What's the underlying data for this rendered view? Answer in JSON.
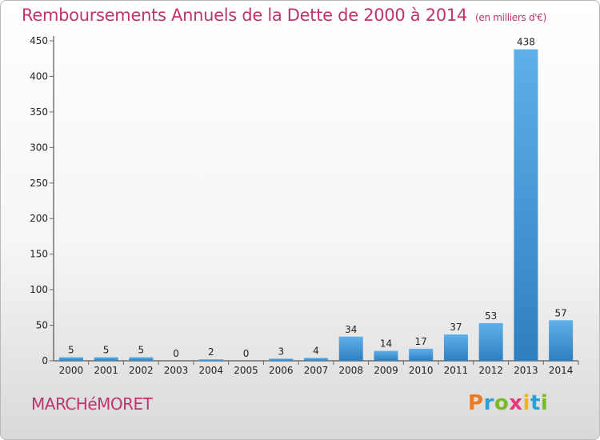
{
  "header": {
    "title": "Remboursements Annuels de la Dette de 2000 à 2014",
    "unit_note": "(en milliers d'€)"
  },
  "footer": {
    "town": "MARCHéMORET",
    "logo_letters": [
      {
        "ch": "P",
        "color": "#f07b1e"
      },
      {
        "ch": "r",
        "color": "#2aa0d8"
      },
      {
        "ch": "o",
        "color": "#7ab929"
      },
      {
        "ch": "x",
        "color": "#e53a7a"
      },
      {
        "ch": "i",
        "color": "#f2b21c"
      },
      {
        "ch": "t",
        "color": "#2aa0d8"
      },
      {
        "ch": "i",
        "color": "#7ab929"
      }
    ]
  },
  "colors": {
    "bar_top": "#5fb0e8",
    "bar_bottom": "#2e7fc0",
    "title": "#c0336e"
  },
  "chart_data": {
    "type": "bar",
    "title": "Remboursements Annuels de la Dette de 2000 à 2014",
    "unit": "(en milliers d'€)",
    "categories": [
      "2000",
      "2001",
      "2002",
      "2003",
      "2004",
      "2005",
      "2006",
      "2007",
      "2008",
      "2009",
      "2010",
      "2011",
      "2012",
      "2013",
      "2014"
    ],
    "values": [
      5,
      5,
      5,
      0,
      2,
      0,
      3,
      4,
      34,
      14,
      17,
      37,
      53,
      438,
      57
    ],
    "ylim": [
      0,
      450
    ],
    "yticks": [
      0,
      50,
      100,
      150,
      200,
      250,
      300,
      350,
      400,
      450
    ],
    "grid": false,
    "legend": "none"
  }
}
